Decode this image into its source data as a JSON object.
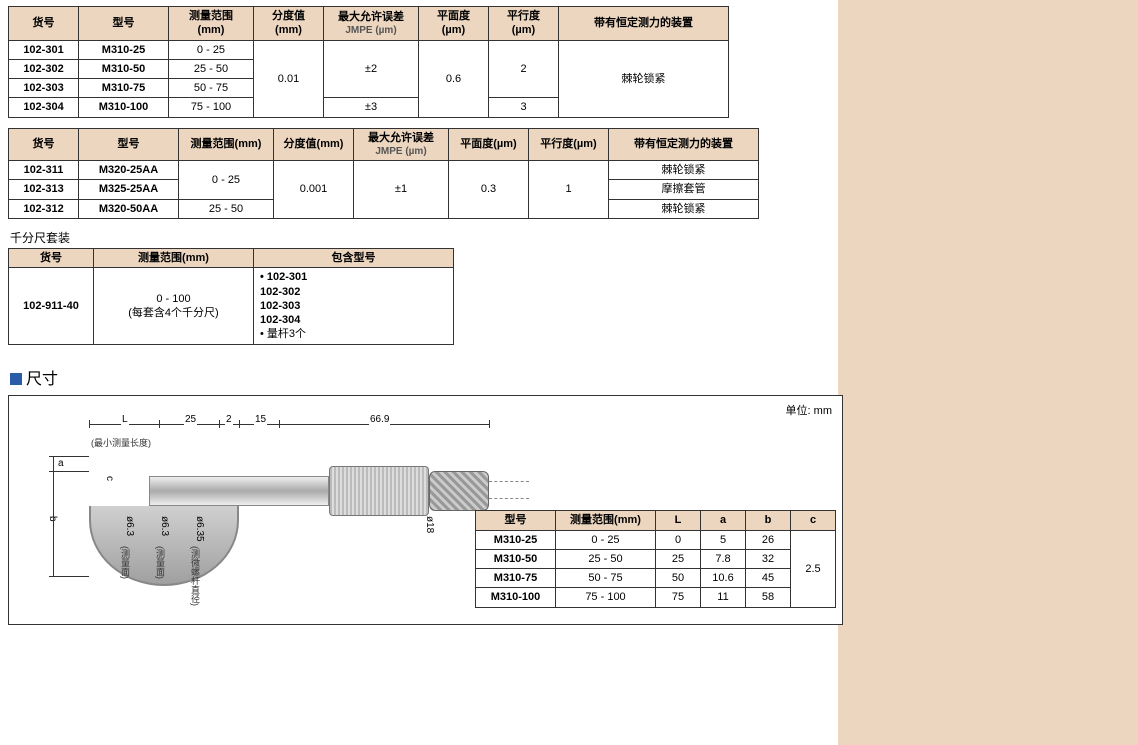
{
  "colors": {
    "header_bg": "#ecd6c0",
    "side_bg": "#ecd6c0",
    "border": "#333333",
    "accent_square": "#2a5caa"
  },
  "table1": {
    "headers": {
      "code": "货号",
      "model": "型号",
      "range": "测量范围\n(mm)",
      "graduation": "分度值\n(mm)",
      "error_line1": "最大允许误差",
      "error_line2": "JMPE (µm)",
      "flatness": "平面度\n(µm)",
      "parallel": "平行度\n(µm)",
      "device": "带有恒定测力的装置"
    },
    "graduation_val": "0.01",
    "flatness_val": "0.6",
    "device_val": "棘轮锁紧",
    "rows": [
      {
        "code": "102-301",
        "model": "M310-25",
        "range": "0 - 25",
        "error": "±2",
        "parallel": "2"
      },
      {
        "code": "102-302",
        "model": "M310-50",
        "range": "25 - 50",
        "error": "",
        "parallel": ""
      },
      {
        "code": "102-303",
        "model": "M310-75",
        "range": "50 - 75",
        "error": "",
        "parallel": ""
      },
      {
        "code": "102-304",
        "model": "M310-100",
        "range": "75 - 100",
        "error": "±3",
        "parallel": "3"
      }
    ]
  },
  "table2": {
    "headers": {
      "code": "货号",
      "model": "型号",
      "range": "测量范围(mm)",
      "graduation": "分度值(mm)",
      "error_line1": "最大允许误差",
      "error_line2": "JMPE (µm)",
      "flatness": "平面度(µm)",
      "parallel": "平行度(µm)",
      "device": "带有恒定测力的装置"
    },
    "graduation_val": "0.001",
    "error_val": "±1",
    "flatness_val": "0.3",
    "parallel_val": "1",
    "rows": [
      {
        "code": "102-311",
        "model": "M320-25AA",
        "range": "0 - 25",
        "device": "棘轮锁紧"
      },
      {
        "code": "102-313",
        "model": "M325-25AA",
        "range": "",
        "device": "摩擦套管"
      },
      {
        "code": "102-312",
        "model": "M320-50AA",
        "range": "25 - 50",
        "device": "棘轮锁紧"
      }
    ]
  },
  "set_section": {
    "title": "千分尺套装",
    "headers": {
      "code": "货号",
      "range": "测量范围(mm)",
      "contents": "包含型号"
    },
    "row": {
      "code": "102-911-40",
      "range_line1": "0 - 100",
      "range_line2": "(每套含4个千分尺)",
      "contents": [
        "• 102-301",
        "  102-302",
        "  102-303",
        "  102-304",
        "• 量杆3个"
      ]
    }
  },
  "dim_section": {
    "title": "尺寸",
    "unit": "单位: mm",
    "top_dims": {
      "L": "L",
      "d25": "25",
      "d2": "2",
      "d15": "15",
      "d669": "66.9"
    },
    "side_labels": {
      "a": "a",
      "b": "b",
      "c": "c",
      "min_len": "(最小测量长度)"
    },
    "diam_labels": {
      "d63_1": "ø6.3",
      "d63_2": "ø6.3",
      "d635": "ø6.35",
      "d18": "ø18"
    },
    "anno_labels": {
      "m1": "(测量面)",
      "m2": "(测量面)",
      "m3": "(测微螺杆直径)"
    },
    "table": {
      "headers": {
        "model": "型号",
        "range": "测量范围(mm)",
        "L": "L",
        "a": "a",
        "b": "b",
        "c": "c"
      },
      "c_val": "2.5",
      "rows": [
        {
          "model": "M310-25",
          "range": "0 - 25",
          "L": "0",
          "a": "5",
          "b": "26"
        },
        {
          "model": "M310-50",
          "range": "25 - 50",
          "L": "25",
          "a": "7.8",
          "b": "32"
        },
        {
          "model": "M310-75",
          "range": "50 - 75",
          "L": "50",
          "a": "10.6",
          "b": "45"
        },
        {
          "model": "M310-100",
          "range": "75 - 100",
          "L": "75",
          "a": "11",
          "b": "58"
        }
      ]
    }
  }
}
